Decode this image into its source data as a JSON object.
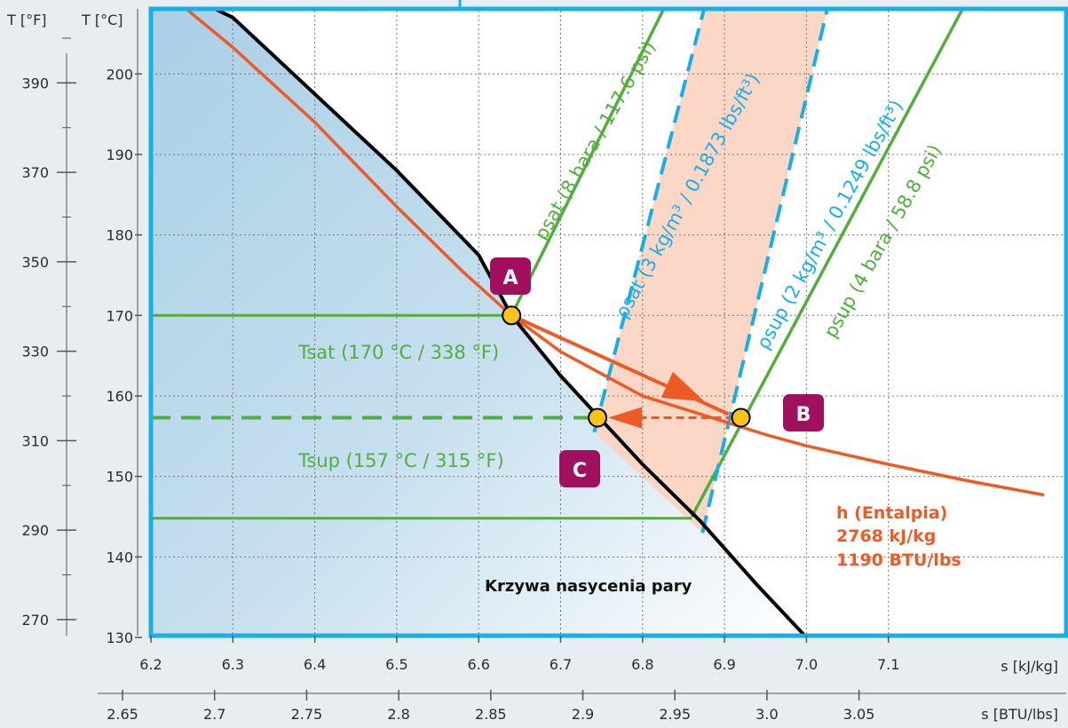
{
  "colors": {
    "frame": "#1aaee6",
    "green": "#53ad3d",
    "blue": "#1aaee6",
    "orange": "#ee5a26",
    "badge": "#a0105e",
    "point": "#fbc21a",
    "band": "#fcd3c0",
    "page": "#e7edf1"
  },
  "chart_data": {
    "type": "line",
    "x_axis_primary": {
      "label": "s [kJ/kg]",
      "range": [
        6.2,
        7.2
      ],
      "ticks": [
        "6.2",
        "6.3",
        "6.4",
        "6.5",
        "6.6",
        "6.7",
        "6.8",
        "6.9",
        "7.0",
        "7.1"
      ]
    },
    "x_axis_secondary": {
      "label": "s [BTU/lbs]",
      "ticks": [
        "2.65",
        "2.7",
        "2.75",
        "2.8",
        "2.85",
        "2.9",
        "2.95",
        "3.0",
        "3.05"
      ]
    },
    "y_axis_celsius": {
      "label": "T [°C]",
      "range": [
        130,
        208
      ],
      "ticks": [
        "130",
        "140",
        "150",
        "160",
        "170",
        "180",
        "190",
        "200"
      ]
    },
    "y_axis_fahrenheit": {
      "label": "T [°F]",
      "ticks": [
        "270",
        "290",
        "310",
        "330",
        "350",
        "370",
        "390"
      ]
    },
    "grid": true,
    "series": [
      {
        "kind": "saturation-curve",
        "points": [
          [
            6.24,
            210
          ],
          [
            6.3,
            207
          ],
          [
            6.5,
            188
          ],
          [
            6.6,
            177.5
          ],
          [
            6.64,
            170
          ],
          [
            6.7,
            162.5
          ],
          [
            6.75,
            157
          ],
          [
            6.8,
            151.5
          ],
          [
            6.87,
            144.5
          ],
          [
            6.94,
            136.5
          ],
          [
            7.0,
            130
          ]
        ]
      },
      {
        "kind": "enthalpy-curve",
        "points": [
          [
            6.22,
            210
          ],
          [
            6.3,
            203.3
          ],
          [
            6.4,
            194
          ],
          [
            6.5,
            183.5
          ],
          [
            6.58,
            175.5
          ],
          [
            6.64,
            170
          ],
          [
            6.7,
            165.5
          ],
          [
            6.8,
            160
          ],
          [
            6.9,
            156.8
          ],
          [
            6.95,
            155.2
          ],
          [
            7.0,
            153.8
          ],
          [
            7.1,
            151.5
          ],
          [
            7.2,
            149.4
          ],
          [
            7.29,
            147.7
          ]
        ]
      },
      {
        "kind": "isobar-8bar",
        "points": [
          [
            6.64,
            170
          ],
          [
            6.84,
            211
          ]
        ]
      },
      {
        "kind": "isobar-4bar",
        "points": [
          [
            6.86,
            145
          ],
          [
            7.19,
            208
          ]
        ]
      },
      {
        "kind": "isochore-3kg",
        "points": [
          [
            6.741,
            155.5
          ],
          [
            6.88,
            210
          ]
        ]
      },
      {
        "kind": "isochore-2kg",
        "points": [
          [
            6.873,
            143
          ],
          [
            7.03,
            210
          ]
        ]
      },
      {
        "kind": "saturation-temperature",
        "points": [
          [
            6.2,
            170
          ],
          [
            6.64,
            170
          ]
        ]
      },
      {
        "kind": "superheat-temperature",
        "points": [
          [
            6.2,
            157.3
          ],
          [
            6.75,
            157.3
          ]
        ]
      },
      {
        "kind": "isothermal-145",
        "points": [
          [
            6.2,
            144.8
          ],
          [
            6.86,
            144.8
          ]
        ]
      }
    ],
    "points": [
      {
        "id": "A",
        "s": 6.64,
        "T": 170
      },
      {
        "id": "B",
        "s": 6.92,
        "T": 157.3
      },
      {
        "id": "C",
        "s": 6.745,
        "T": 157.3
      }
    ],
    "annotations": {
      "p_sat_8": "psat (8 bara / 117.6 psi)",
      "rho_sat": "ρsat (3 kg/m³ / 0.1873 lbs/ft³)",
      "rho_sup": "ρsup (2 kg/m³ / 0.1249 lbs/ft³)",
      "p_sup_4": "psup (4 bara / 58.8 psi)",
      "t_sat": "Tsat (170 °C / 338 °F)",
      "t_sup": "Tsup (157 °C / 315 °F)",
      "enthalpy_line1": "h (Entalpia)",
      "enthalpy_line2": "2768 kJ/kg",
      "enthalpy_line3": "1190 BTU/lbs",
      "saturation_curve": "Krzywa nasycenia pary"
    }
  }
}
